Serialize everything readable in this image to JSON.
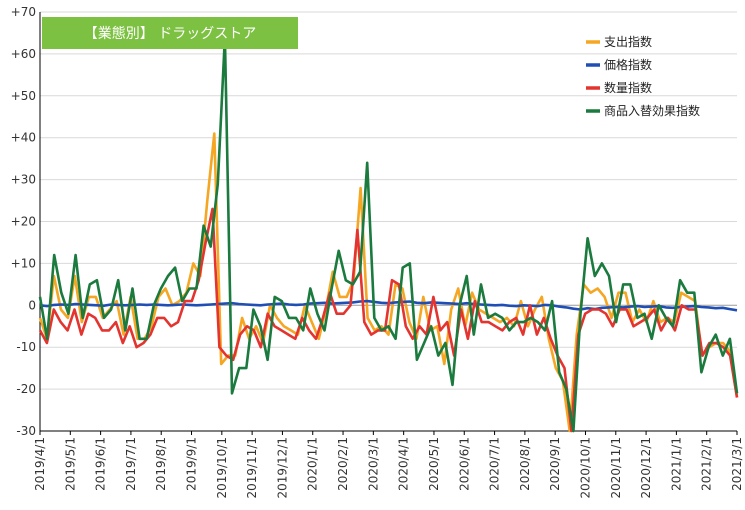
{
  "chart_data": {
    "type": "line",
    "title": "【業態別】 ドラッグストア",
    "colors": {
      "title_bg": "#7dc142",
      "grid": "#d9d9d9",
      "axis": "#000000",
      "spend": "#f5a623",
      "price": "#1f4fb4",
      "quantity": "#e3342f",
      "mix": "#1b7a3e"
    },
    "ylim": [
      -30,
      70
    ],
    "yticks": [
      {
        "v": 70,
        "label": "+70"
      },
      {
        "v": 60,
        "label": "+60"
      },
      {
        "v": 50,
        "label": "+50"
      },
      {
        "v": 40,
        "label": "+40"
      },
      {
        "v": 30,
        "label": "+30"
      },
      {
        "v": 20,
        "label": "+20"
      },
      {
        "v": 10,
        "label": "+10"
      },
      {
        "v": 0,
        "label": "0"
      },
      {
        "v": -10,
        "label": "-10"
      },
      {
        "v": -20,
        "label": "-20"
      },
      {
        "v": -30,
        "label": "-30"
      }
    ],
    "xticks": [
      "2019/4/1",
      "2019/5/1",
      "2019/6/1",
      "2019/7/1",
      "2019/8/1",
      "2019/9/1",
      "2019/10/1",
      "2019/11/1",
      "2019/12/1",
      "2020/1/1",
      "2020/2/1",
      "2020/3/1",
      "2020/4/1",
      "2020/5/1",
      "2020/6/1",
      "2020/7/1",
      "2020/8/1",
      "2020/9/1",
      "2020/10/1",
      "2020/11/1",
      "2020/12/1",
      "2021/1/1",
      "2021/2/1",
      "2021/3/1"
    ],
    "legend": {
      "position": "top-right",
      "entries": [
        "支出指数",
        "価格指数",
        "数量指数",
        "商品入替効果指数"
      ]
    },
    "series": [
      {
        "name": "支出指数",
        "color_key": "spend",
        "values": [
          -3,
          -8,
          7,
          -1,
          -3,
          7,
          -4,
          2,
          2,
          -3,
          -1,
          1,
          -7,
          2,
          -8,
          -8,
          -5,
          2,
          4,
          0,
          1,
          3,
          10,
          7,
          25,
          41,
          -14,
          -12,
          -12,
          -3,
          -8,
          -5,
          -9,
          0,
          -3,
          -5,
          -6,
          -7,
          0,
          -4,
          -8,
          -1,
          8,
          2,
          2,
          6,
          28,
          -3,
          -6,
          -5,
          -7,
          5,
          4,
          -4,
          -8,
          2,
          -6,
          -5,
          -14,
          -1,
          4,
          -5,
          3,
          -1,
          -2,
          -3,
          -4,
          -3,
          -5,
          1,
          -5,
          -1,
          2,
          -8,
          -15,
          -18,
          -33,
          -7,
          5,
          3,
          4,
          2,
          -3,
          3,
          3,
          -4,
          -1,
          -4,
          1,
          -4,
          -3,
          -4,
          3,
          2,
          1,
          -12,
          -10,
          -9,
          -9,
          -11,
          -22
        ]
      },
      {
        "name": "価格指数",
        "color_key": "price",
        "values": [
          0,
          -0.2,
          0.1,
          0.2,
          0.1,
          0.3,
          0.2,
          0.1,
          0,
          -0.1,
          0.2,
          0.1,
          0,
          0.1,
          0.2,
          0.1,
          0.2,
          0.1,
          0,
          0.1,
          0.2,
          0.1,
          0,
          0.1,
          0.2,
          0.3,
          0.4,
          0.5,
          0.3,
          0.2,
          0.1,
          0,
          0.2,
          0.3,
          0.4,
          0.2,
          0.1,
          0.2,
          0.4,
          0.5,
          0.6,
          0.4,
          0.5,
          0.6,
          0.7,
          0.9,
          1.0,
          0.8,
          0.6,
          0.5,
          0.7,
          0.8,
          0.9,
          0.6,
          0.5,
          0.7,
          0.6,
          0.5,
          0.4,
          0.3,
          0.5,
          0.3,
          0.2,
          0.1,
          0,
          0.1,
          -0.1,
          -0.2,
          0,
          -0.1,
          -0.2,
          0.1,
          0,
          -0.3,
          -0.5,
          -0.8,
          -1.0,
          -0.7,
          -0.9,
          -0.6,
          -0.5,
          -0.4,
          -0.5,
          -0.3,
          -0.2,
          -0.4,
          -0.3,
          -0.2,
          -0.5,
          -0.6,
          -0.4,
          -0.3,
          -0.2,
          -0.4,
          -0.5,
          -0.7,
          -0.6,
          -0.9,
          -1.2
        ]
      },
      {
        "name": "数量指数",
        "color_key": "quantity",
        "values": [
          -6,
          -9,
          -1,
          -4,
          -6,
          -1,
          -7,
          -2,
          -3,
          -6,
          -6,
          -4,
          -9,
          -5,
          -10,
          -9,
          -7,
          -3,
          -3,
          -5,
          -4,
          1,
          1,
          6,
          15,
          23,
          -10,
          -12,
          -13,
          -7,
          -5,
          -6,
          -10,
          -2,
          -5,
          -6,
          -7,
          -8,
          -3,
          -6,
          -8,
          -3,
          3,
          -2,
          -2,
          0,
          18,
          -4,
          -7,
          -6,
          -6,
          6,
          5,
          -5,
          -8,
          -5,
          -7,
          2,
          -6,
          -4,
          -12,
          -1,
          -8,
          1,
          -4,
          -4,
          -5,
          -6,
          -4,
          -3,
          -7,
          0,
          -7,
          -3,
          -8,
          -12,
          -15,
          -33,
          -7,
          -2,
          -1,
          -1,
          -2,
          -5,
          -1,
          -1,
          -5,
          -4,
          -3,
          -1,
          -6,
          -3,
          -6,
          0,
          -1,
          -1,
          -12,
          -9,
          -9,
          -10,
          -12,
          -22
        ]
      },
      {
        "name": "商品入替効果指数",
        "color_key": "mix",
        "values": [
          2,
          -8,
          12,
          3,
          -2,
          12,
          -3,
          5,
          6,
          -3,
          -1,
          6,
          -6,
          4,
          -8,
          -8,
          0,
          4,
          7,
          9,
          1,
          4,
          4,
          19,
          14,
          29,
          64,
          -21,
          -15,
          -15,
          -1,
          -5,
          -13,
          2,
          1,
          -3,
          -3,
          -6,
          4,
          -2,
          -6,
          4,
          13,
          6,
          5,
          8,
          34,
          -3,
          -6,
          -5,
          -8,
          9,
          10,
          -13,
          -9,
          -5,
          -12,
          -9,
          -19,
          0,
          7,
          -7,
          5,
          -3,
          -2,
          -3,
          -6,
          -4,
          -4,
          -3,
          -4,
          -6,
          1,
          -16,
          -20,
          -30,
          -2,
          16,
          7,
          10,
          7,
          -4,
          5,
          5,
          -3,
          -2,
          -8,
          0,
          -3,
          -5,
          6,
          3,
          3,
          -16,
          -10,
          -7,
          -12,
          -8,
          -21
        ]
      }
    ]
  }
}
